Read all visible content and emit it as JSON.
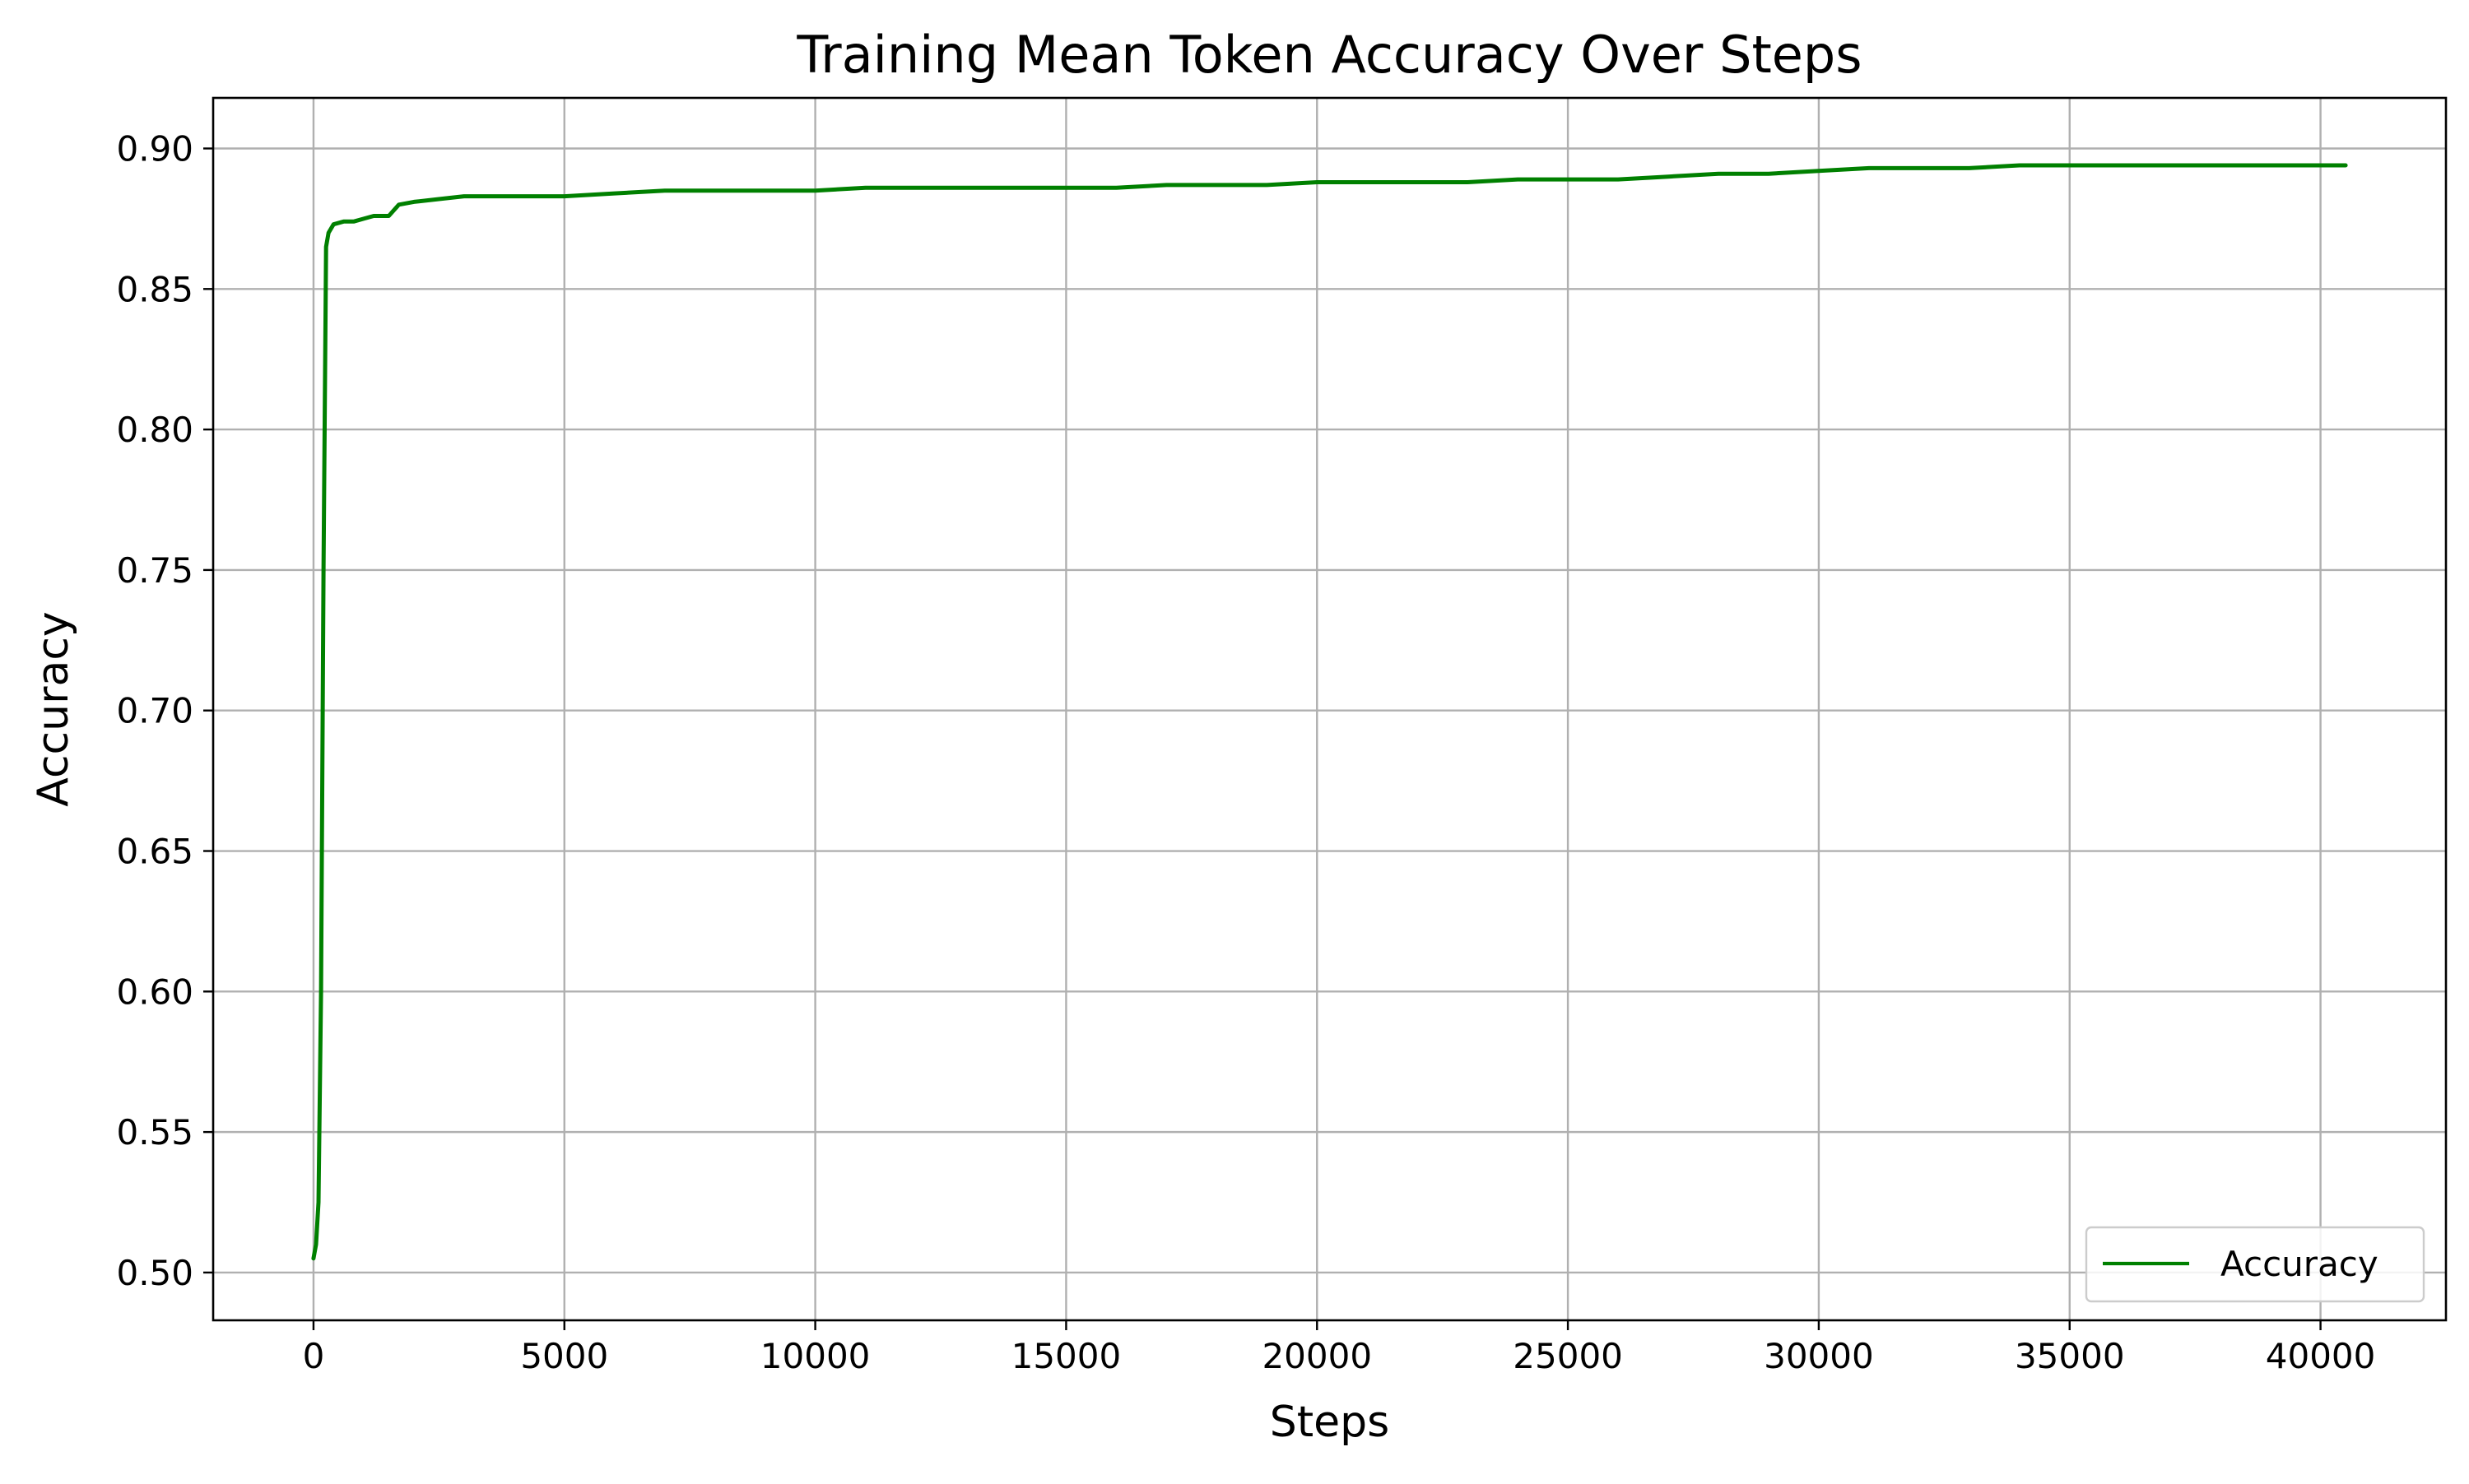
{
  "chart_data": {
    "type": "line",
    "title": "Training Mean Token Accuracy Over Steps",
    "xlabel": "Steps",
    "ylabel": "Accuracy",
    "xlim": [
      -2000,
      42500
    ],
    "ylim": [
      0.483,
      0.918
    ],
    "x_ticks": [
      0,
      5000,
      10000,
      15000,
      20000,
      25000,
      30000,
      35000,
      40000
    ],
    "x_tick_labels": [
      "0",
      "5000",
      "10000",
      "15000",
      "20000",
      "25000",
      "30000",
      "35000",
      "40000"
    ],
    "y_ticks": [
      0.5,
      0.55,
      0.6,
      0.65,
      0.7,
      0.75,
      0.8,
      0.85,
      0.9
    ],
    "y_tick_labels": [
      "0.50",
      "0.55",
      "0.60",
      "0.65",
      "0.70",
      "0.75",
      "0.80",
      "0.85",
      "0.90"
    ],
    "grid": true,
    "legend_position": "lower right",
    "series": [
      {
        "name": "Accuracy",
        "color": "#008000",
        "x": [
          0,
          50,
          100,
          150,
          200,
          250,
          300,
          400,
          600,
          800,
          1000,
          1200,
          1500,
          1700,
          2000,
          2500,
          3000,
          3500,
          4000,
          5000,
          6000,
          7000,
          8000,
          9000,
          10000,
          11000,
          12000,
          13000,
          14000,
          15000,
          16000,
          17000,
          18000,
          19000,
          20000,
          21000,
          22000,
          23000,
          24000,
          25000,
          26000,
          27000,
          28000,
          29000,
          30000,
          31000,
          32000,
          33000,
          34000,
          35000,
          36000,
          37000,
          38000,
          39000,
          40000,
          40500
        ],
        "y": [
          0.505,
          0.51,
          0.525,
          0.6,
          0.75,
          0.865,
          0.87,
          0.873,
          0.874,
          0.874,
          0.875,
          0.876,
          0.876,
          0.88,
          0.881,
          0.882,
          0.883,
          0.883,
          0.883,
          0.883,
          0.884,
          0.885,
          0.885,
          0.885,
          0.885,
          0.886,
          0.886,
          0.886,
          0.886,
          0.886,
          0.886,
          0.887,
          0.887,
          0.887,
          0.888,
          0.888,
          0.888,
          0.888,
          0.889,
          0.889,
          0.889,
          0.89,
          0.891,
          0.891,
          0.892,
          0.893,
          0.893,
          0.893,
          0.894,
          0.894,
          0.894,
          0.894,
          0.894,
          0.894,
          0.894,
          0.894
        ]
      }
    ]
  }
}
